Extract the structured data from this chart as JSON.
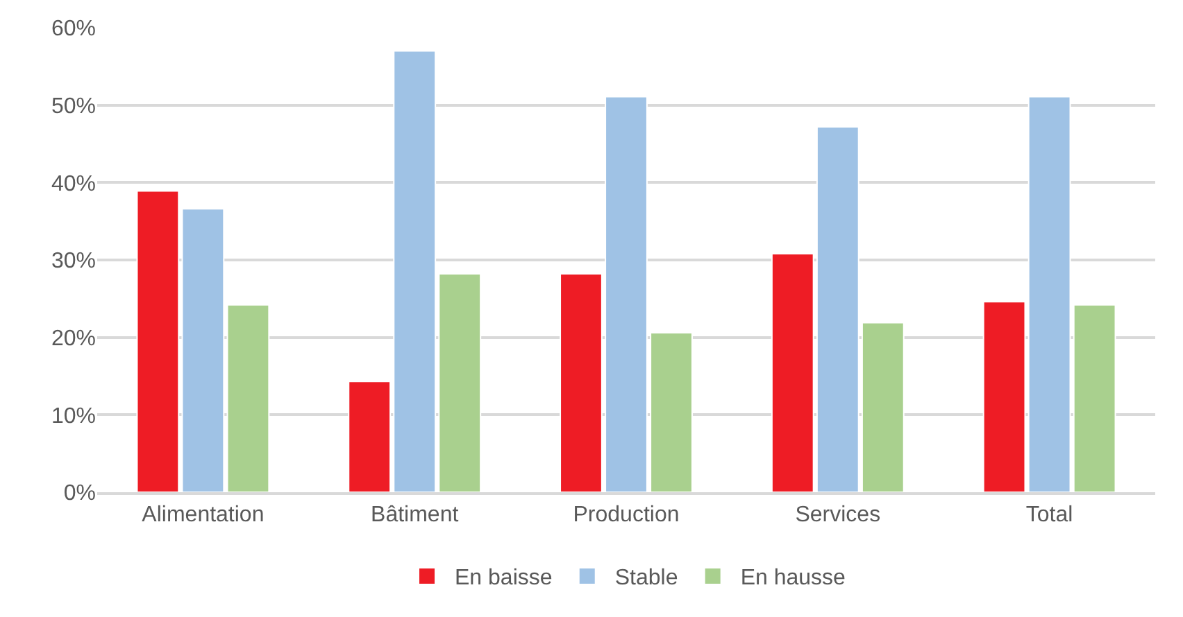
{
  "chart_data": {
    "type": "bar",
    "categories": [
      "Alimentation",
      "Bâtiment",
      "Production",
      "Services",
      "Total"
    ],
    "series": [
      {
        "name": "En baisse",
        "color": "#ee1c25",
        "values": [
          38.9,
          14.3,
          28.2,
          30.8,
          24.6
        ]
      },
      {
        "name": "Stable",
        "color": "#9fc2e5",
        "values": [
          36.6,
          57,
          51.1,
          47.2,
          51.1
        ]
      },
      {
        "name": "En hausse",
        "color": "#a9d08e",
        "values": [
          24.2,
          28.2,
          20.6,
          21.9,
          24.2
        ]
      }
    ],
    "ylim": [
      0,
      60
    ],
    "yticks": [
      {
        "value": 0,
        "label": "0%"
      },
      {
        "value": 10,
        "label": "10%"
      },
      {
        "value": 20,
        "label": "20%"
      },
      {
        "value": 30,
        "label": "30%"
      },
      {
        "value": 40,
        "label": "40%"
      },
      {
        "value": 50,
        "label": "50%"
      },
      {
        "value": 60,
        "label": "60%"
      }
    ],
    "grid": "y",
    "legend": "bottom"
  }
}
